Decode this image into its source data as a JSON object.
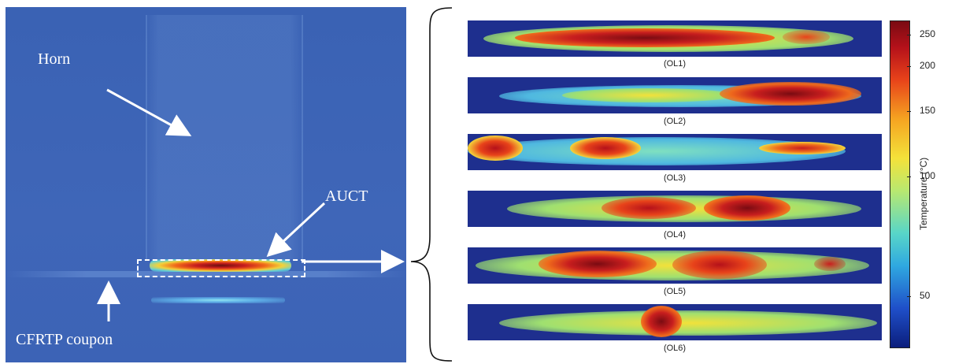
{
  "photo": {
    "labels": {
      "horn": "Horn",
      "auct": "AUCT",
      "coupon": "CFRTP coupon"
    }
  },
  "strips": [
    {
      "caption": "(OL1)"
    },
    {
      "caption": "(OL2)"
    },
    {
      "caption": "(OL3)"
    },
    {
      "caption": "(OL4)"
    },
    {
      "caption": "(OL5)"
    },
    {
      "caption": "(OL6)"
    }
  ],
  "colorbar": {
    "label": "Temperature (°C)",
    "ticks": [
      "250",
      "200",
      "150",
      "100",
      "50"
    ],
    "colors": {
      "low": "#0b1e7c",
      "mid": "#f4e23a",
      "high": "#7a0b12"
    }
  }
}
